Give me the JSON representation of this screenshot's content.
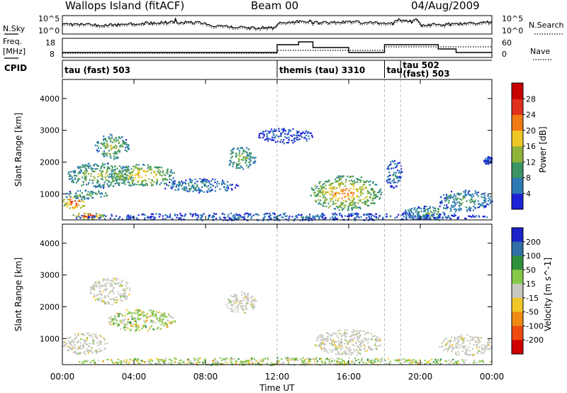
{
  "header": {
    "site": "Wallops Island (fitACF)",
    "beam": "Beam 00",
    "date": "04/Aug/2009"
  },
  "noise_panel": {
    "label": "N.Sky",
    "right_label": "N.Search",
    "ticks": [
      "10^5",
      "10^0"
    ]
  },
  "freq_panel": {
    "label_top": "Freq.",
    "label_bottom": "[MHz]",
    "right_label": "Nave",
    "left_ticks": [
      "18",
      "8"
    ],
    "right_ticks": [
      "60",
      "0"
    ]
  },
  "cpid": {
    "label": "CPID",
    "segments": [
      {
        "start": 0,
        "end": 12,
        "name": "tau (fast) 503"
      },
      {
        "start": 12,
        "end": 18,
        "name": "themis (tau) 3310"
      },
      {
        "start": 18,
        "end": 18.9,
        "name": "tau"
      },
      {
        "start": 18.9,
        "end": 24,
        "name": "tau 502",
        "name2": "(fast) 503"
      }
    ]
  },
  "x_axis": {
    "label": "Time UT",
    "ticks": [
      "00:00",
      "04:00",
      "08:00",
      "12:00",
      "16:00",
      "20:00",
      "00:00"
    ],
    "hours": [
      0,
      4,
      8,
      12,
      16,
      20,
      24
    ]
  },
  "chart_data": [
    {
      "type": "heatmap",
      "title": "",
      "xlabel": "Time UT",
      "ylabel": "Slant Range [km]",
      "xlim": [
        0,
        24
      ],
      "ylim": [
        180,
        4600
      ],
      "yticks": [
        1000,
        2000,
        3000,
        4000
      ],
      "colorbar": {
        "label": "Power [dB]",
        "ticks": [
          4,
          8,
          12,
          16,
          20,
          24,
          28
        ],
        "range": [
          0,
          32
        ],
        "colors": [
          "#1c22d6",
          "#2d7ab5",
          "#3c9464",
          "#8fb43a",
          "#f0c825",
          "#f07a14",
          "#e0301e",
          "#c80000"
        ]
      },
      "echo_regions": [
        {
          "t": [
            0,
            1.3
          ],
          "r": [
            500,
            1000
          ],
          "level": 26
        },
        {
          "t": [
            0.5,
            2.3
          ],
          "r": [
            230,
            420
          ],
          "level": 26
        },
        {
          "t": [
            0,
            2.5
          ],
          "r": [
            850,
            1150
          ],
          "level": 12
        },
        {
          "t": [
            0.2,
            4.0
          ],
          "r": [
            1200,
            2000
          ],
          "level": 14
        },
        {
          "t": [
            1.8,
            3.7
          ],
          "r": [
            2100,
            2900
          ],
          "level": 14
        },
        {
          "t": [
            2.5,
            6.3
          ],
          "r": [
            1250,
            1950
          ],
          "level": 18
        },
        {
          "t": [
            5.5,
            9.8
          ],
          "r": [
            1050,
            1500
          ],
          "level": 9
        },
        {
          "t": [
            9.1,
            10.8
          ],
          "r": [
            1800,
            2500
          ],
          "level": 13
        },
        {
          "t": [
            10.8,
            14.0
          ],
          "r": [
            2600,
            3100
          ],
          "level": 5
        },
        {
          "t": [
            13.8,
            17.8
          ],
          "r": [
            500,
            1600
          ],
          "level": 20
        },
        {
          "t": [
            18.0,
            19.0
          ],
          "r": [
            1200,
            2100
          ],
          "level": 7
        },
        {
          "t": [
            19.0,
            22.0
          ],
          "r": [
            180,
            650
          ],
          "level": 10
        },
        {
          "t": [
            21.0,
            24.0
          ],
          "r": [
            480,
            1150
          ],
          "level": 10
        },
        {
          "t": [
            23.5,
            24.0
          ],
          "r": [
            1950,
            2200
          ],
          "level": 5
        },
        {
          "t": [
            0,
            24
          ],
          "r": [
            180,
            420
          ],
          "level": 6
        }
      ]
    },
    {
      "type": "heatmap",
      "title": "",
      "xlabel": "Time UT",
      "ylabel": "Slant Range [km]",
      "xlim": [
        0,
        24
      ],
      "ylim": [
        180,
        4600
      ],
      "yticks": [
        1000,
        2000,
        3000,
        4000
      ],
      "colorbar": {
        "label": "Velocity [m s^-1]",
        "ticks": [
          200,
          100,
          50,
          15,
          -15,
          -50,
          -100,
          -200
        ],
        "colors": [
          "#1a22c8",
          "#2e6fa6",
          "#2f8f3a",
          "#86c84a",
          "#c8c8c0",
          "#f0c828",
          "#f08a14",
          "#ee4a10",
          "#d00000"
        ]
      },
      "echo_regions": [
        {
          "t": [
            0,
            2.5
          ],
          "r": [
            500,
            1200
          ],
          "class": "ground"
        },
        {
          "t": [
            1.5,
            3.8
          ],
          "r": [
            2100,
            2950
          ],
          "class": "ground"
        },
        {
          "t": [
            2.5,
            6.3
          ],
          "r": [
            1250,
            1950
          ],
          "class": "ionospheric_positive"
        },
        {
          "t": [
            9.1,
            10.8
          ],
          "r": [
            1800,
            2500
          ],
          "class": "ground"
        },
        {
          "t": [
            14.0,
            17.8
          ],
          "r": [
            500,
            1300
          ],
          "class": "ground"
        },
        {
          "t": [
            21.0,
            24.0
          ],
          "r": [
            480,
            1150
          ],
          "class": "ground"
        },
        {
          "t": [
            0,
            24
          ],
          "r": [
            180,
            420
          ],
          "class": "ionospheric_positive"
        }
      ]
    }
  ]
}
